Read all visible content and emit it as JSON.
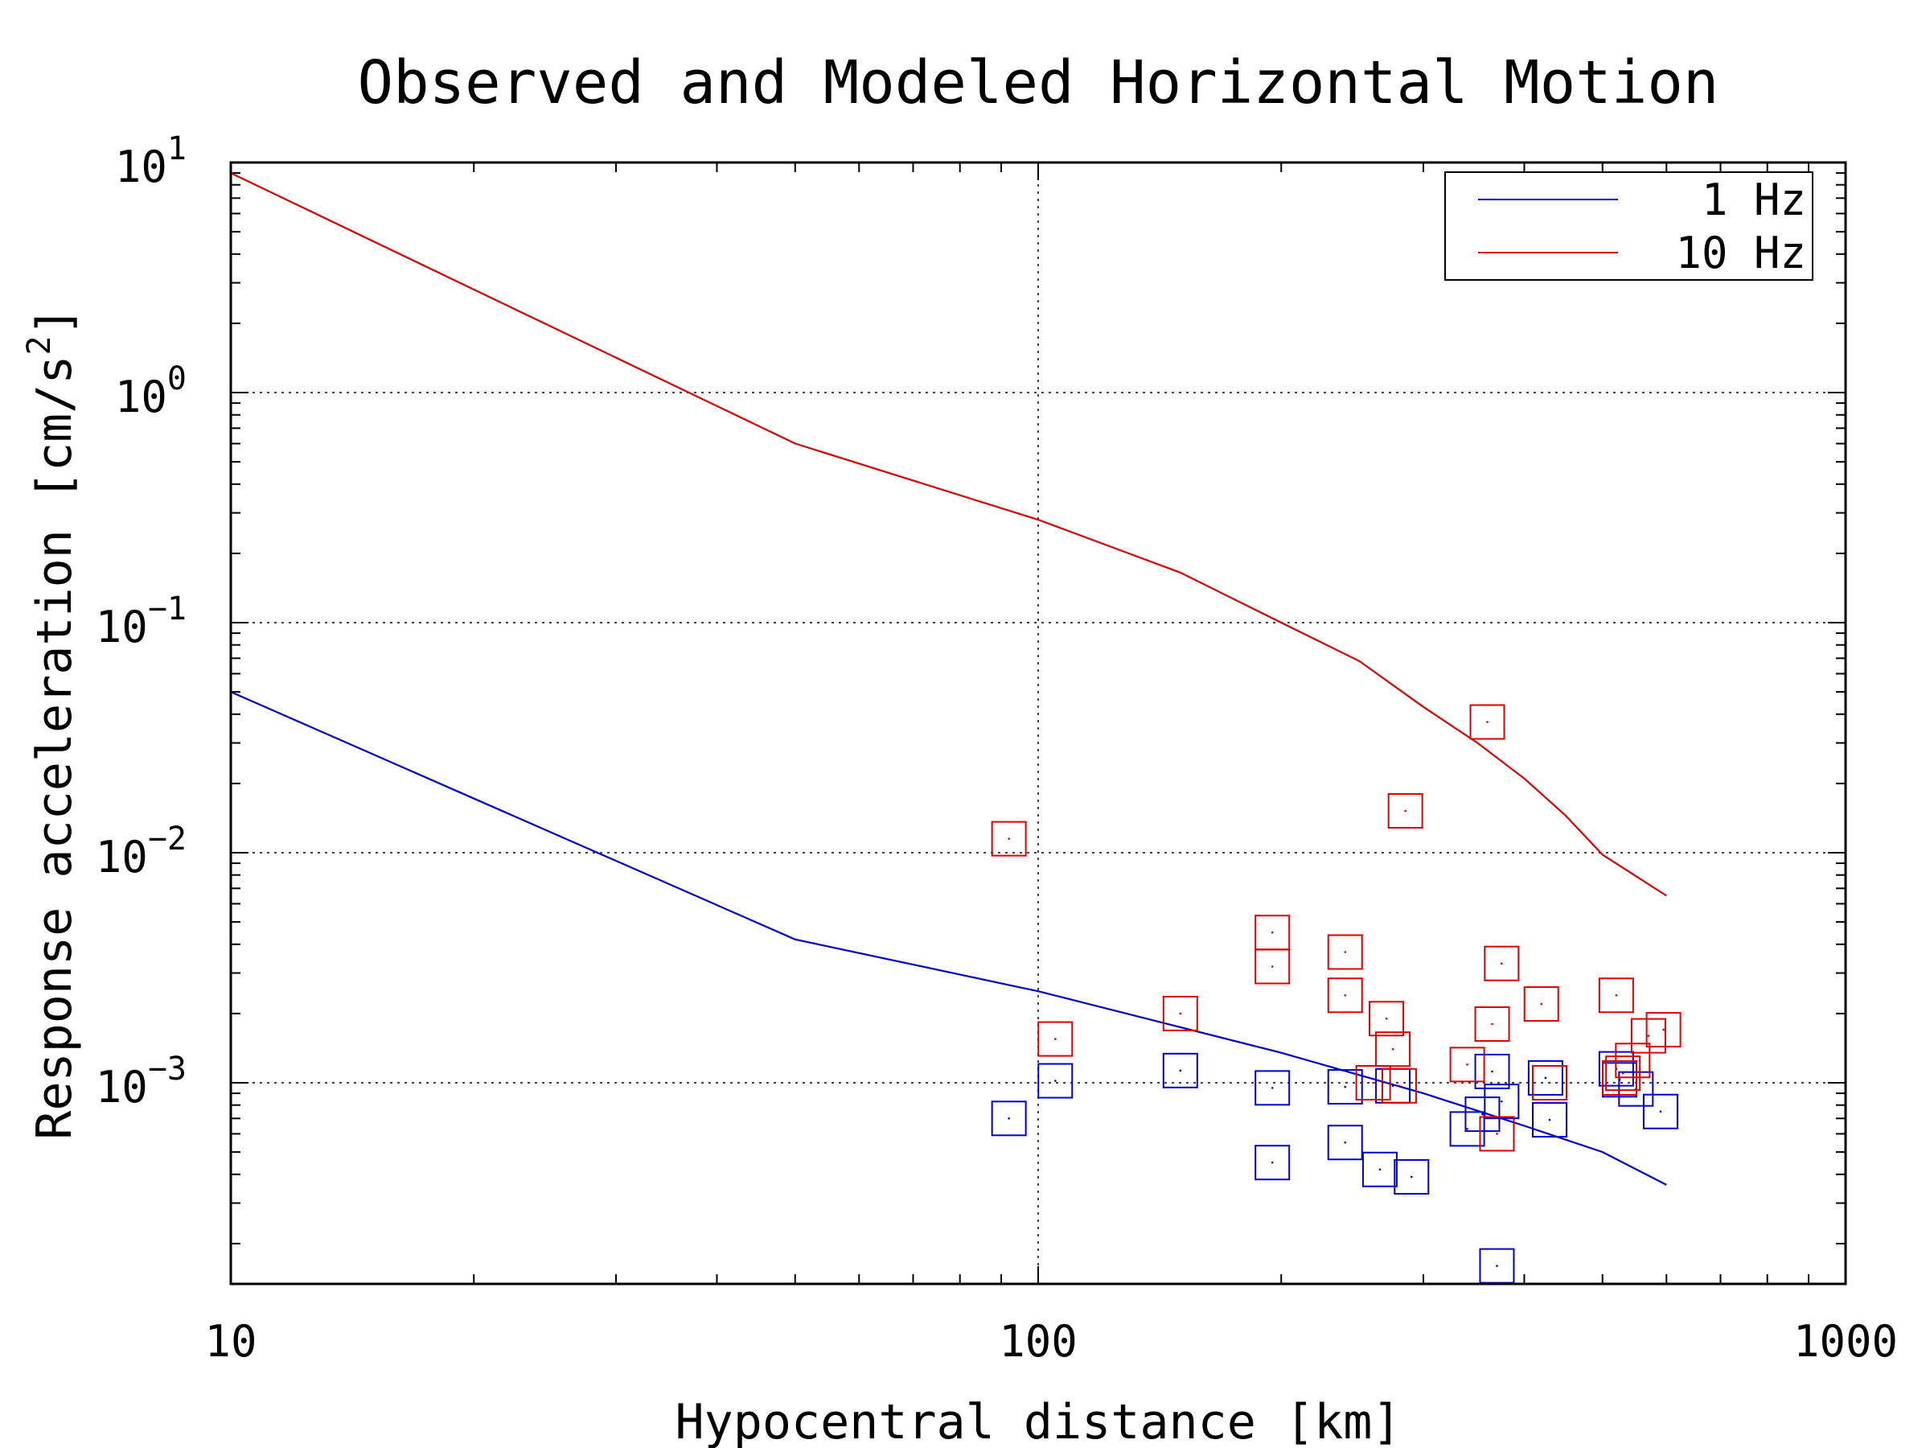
{
  "chart_data": {
    "type": "scatter",
    "title": "Observed and Modeled Horizontal Motion",
    "xlabel": "Hypocentral distance [km]",
    "ylabel_base": "Response acceleration [cm/s",
    "ylabel_sup": "2",
    "ylabel_end": "]",
    "xscale": "log",
    "yscale": "log",
    "xlim": [
      10,
      1000
    ],
    "ylim": [
      0.00015,
      10
    ],
    "grid": "major, dotted",
    "legend_position": "top-right",
    "x_ticks": [
      {
        "value": 10,
        "label": "10"
      },
      {
        "value": 100,
        "label": "100"
      },
      {
        "value": 1000,
        "label": "1000"
      }
    ],
    "y_ticks": [
      {
        "value": 10,
        "base": "10",
        "exp": "1"
      },
      {
        "value": 1,
        "base": "10",
        "exp": "0"
      },
      {
        "value": 0.1,
        "base": "10",
        "exp": "−1"
      },
      {
        "value": 0.01,
        "base": "10",
        "exp": "−2"
      },
      {
        "value": 0.001,
        "base": "10",
        "exp": "−3"
      }
    ],
    "series": [
      {
        "name": "1 Hz",
        "color": "#0000cc",
        "model_line": [
          [
            10,
            0.05
          ],
          [
            50,
            0.0042
          ],
          [
            100,
            0.0025
          ],
          [
            200,
            0.00135
          ],
          [
            300,
            0.0009
          ],
          [
            400,
            0.00065
          ],
          [
            500,
            0.0005
          ],
          [
            600,
            0.00036
          ]
        ],
        "observed": [
          [
            92,
            0.0007
          ],
          [
            105,
            0.00102
          ],
          [
            150,
            0.00113
          ],
          [
            195,
            0.00095
          ],
          [
            195,
            0.00045
          ],
          [
            240,
            0.00096
          ],
          [
            240,
            0.00055
          ],
          [
            265,
            0.00042
          ],
          [
            275,
            0.00097
          ],
          [
            290,
            0.00039
          ],
          [
            340,
            0.00063
          ],
          [
            355,
            0.00073
          ],
          [
            365,
            0.00112
          ],
          [
            370,
            0.00016
          ],
          [
            375,
            0.00083
          ],
          [
            425,
            0.00105
          ],
          [
            430,
            0.00069
          ],
          [
            520,
            0.00115
          ],
          [
            525,
            0.00103
          ],
          [
            550,
            0.00094
          ],
          [
            590,
            0.00075
          ]
        ]
      },
      {
        "name": "10 Hz",
        "color": "#dd0000",
        "model_line": [
          [
            10,
            9
          ],
          [
            50,
            0.6
          ],
          [
            100,
            0.28
          ],
          [
            150,
            0.165
          ],
          [
            200,
            0.1
          ],
          [
            250,
            0.068
          ],
          [
            300,
            0.043
          ],
          [
            350,
            0.03
          ],
          [
            400,
            0.021
          ],
          [
            450,
            0.0145
          ],
          [
            500,
            0.0098
          ],
          [
            600,
            0.0065
          ]
        ],
        "observed": [
          [
            92,
            0.0115
          ],
          [
            105,
            0.00155
          ],
          [
            150,
            0.002
          ],
          [
            195,
            0.0045
          ],
          [
            195,
            0.0032
          ],
          [
            240,
            0.0037
          ],
          [
            240,
            0.0024
          ],
          [
            260,
            0.001
          ],
          [
            270,
            0.0019
          ],
          [
            275,
            0.0014
          ],
          [
            280,
            0.00097
          ],
          [
            285,
            0.0152
          ],
          [
            340,
            0.0012
          ],
          [
            360,
            0.037
          ],
          [
            365,
            0.0018
          ],
          [
            370,
            0.0006
          ],
          [
            375,
            0.0033
          ],
          [
            420,
            0.0022
          ],
          [
            430,
            0.001
          ],
          [
            520,
            0.0024
          ],
          [
            525,
            0.00105
          ],
          [
            530,
            0.0011
          ],
          [
            545,
            0.00125
          ],
          [
            570,
            0.0016
          ],
          [
            595,
            0.0017
          ]
        ]
      }
    ]
  }
}
